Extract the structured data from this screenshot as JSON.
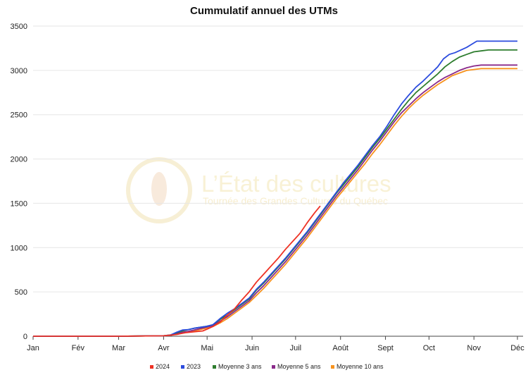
{
  "watermark": {
    "title": "L’État des cultures",
    "subtitle": "Tournée des Grandes Cultures du Québec"
  },
  "chart_data": {
    "type": "line",
    "title": "Cummulatif annuel des UTMs",
    "xlabel": "",
    "ylabel": "",
    "x_tick_labels": [
      "Jan",
      "Fév",
      "Mar",
      "Avr",
      "Mai",
      "Juin",
      "Juil",
      "Août",
      "Sept",
      "Oct",
      "Nov",
      "Déc"
    ],
    "x_tick_days": [
      1,
      32,
      60,
      91,
      121,
      152,
      182,
      213,
      244,
      274,
      305,
      335
    ],
    "xlim": [
      1,
      335
    ],
    "ylim": [
      0,
      3500
    ],
    "y_ticks": [
      0,
      500,
      1000,
      1500,
      2000,
      2500,
      3000,
      3500
    ],
    "grid": "horizontal",
    "legend_position": "bottom",
    "series": [
      {
        "name": "2024",
        "color": "#ee3224",
        "points": [
          [
            1,
            0
          ],
          [
            60,
            0
          ],
          [
            91,
            5
          ],
          [
            100,
            20
          ],
          [
            106,
            40
          ],
          [
            112,
            50
          ],
          [
            118,
            60
          ],
          [
            121,
            80
          ],
          [
            125,
            110
          ],
          [
            130,
            160
          ],
          [
            135,
            240
          ],
          [
            140,
            310
          ],
          [
            145,
            410
          ],
          [
            150,
            500
          ],
          [
            155,
            610
          ],
          [
            160,
            700
          ],
          [
            165,
            790
          ],
          [
            170,
            880
          ],
          [
            175,
            980
          ],
          [
            180,
            1070
          ],
          [
            185,
            1160
          ],
          [
            190,
            1280
          ],
          [
            195,
            1390
          ],
          [
            199,
            1470
          ]
        ]
      },
      {
        "name": "2023",
        "color": "#2b4bde",
        "points": [
          [
            1,
            0
          ],
          [
            60,
            0
          ],
          [
            91,
            5
          ],
          [
            96,
            15
          ],
          [
            100,
            45
          ],
          [
            104,
            70
          ],
          [
            108,
            75
          ],
          [
            112,
            90
          ],
          [
            116,
            100
          ],
          [
            120,
            110
          ],
          [
            125,
            130
          ],
          [
            130,
            200
          ],
          [
            135,
            260
          ],
          [
            140,
            310
          ],
          [
            145,
            370
          ],
          [
            150,
            430
          ],
          [
            155,
            530
          ],
          [
            160,
            610
          ],
          [
            165,
            700
          ],
          [
            170,
            790
          ],
          [
            175,
            880
          ],
          [
            180,
            980
          ],
          [
            185,
            1080
          ],
          [
            190,
            1180
          ],
          [
            195,
            1290
          ],
          [
            200,
            1400
          ],
          [
            205,
            1510
          ],
          [
            210,
            1620
          ],
          [
            215,
            1730
          ],
          [
            220,
            1830
          ],
          [
            225,
            1930
          ],
          [
            230,
            2040
          ],
          [
            235,
            2150
          ],
          [
            240,
            2250
          ],
          [
            245,
            2370
          ],
          [
            250,
            2500
          ],
          [
            255,
            2620
          ],
          [
            260,
            2720
          ],
          [
            265,
            2810
          ],
          [
            270,
            2880
          ],
          [
            275,
            2960
          ],
          [
            280,
            3040
          ],
          [
            284,
            3130
          ],
          [
            288,
            3180
          ],
          [
            292,
            3200
          ],
          [
            296,
            3230
          ],
          [
            300,
            3260
          ],
          [
            303,
            3290
          ],
          [
            307,
            3330
          ],
          [
            320,
            3330
          ],
          [
            335,
            3330
          ]
        ]
      },
      {
        "name": "Moyenne 3 ans",
        "color": "#2e7d2e",
        "points": [
          [
            1,
            0
          ],
          [
            60,
            0
          ],
          [
            91,
            5
          ],
          [
            96,
            15
          ],
          [
            100,
            40
          ],
          [
            104,
            60
          ],
          [
            108,
            75
          ],
          [
            112,
            90
          ],
          [
            116,
            100
          ],
          [
            120,
            110
          ],
          [
            125,
            130
          ],
          [
            130,
            190
          ],
          [
            135,
            240
          ],
          [
            140,
            300
          ],
          [
            145,
            360
          ],
          [
            150,
            420
          ],
          [
            155,
            520
          ],
          [
            160,
            600
          ],
          [
            165,
            690
          ],
          [
            170,
            780
          ],
          [
            175,
            870
          ],
          [
            180,
            970
          ],
          [
            185,
            1070
          ],
          [
            190,
            1170
          ],
          [
            195,
            1280
          ],
          [
            200,
            1390
          ],
          [
            205,
            1500
          ],
          [
            210,
            1610
          ],
          [
            215,
            1710
          ],
          [
            220,
            1810
          ],
          [
            225,
            1910
          ],
          [
            230,
            2020
          ],
          [
            235,
            2130
          ],
          [
            240,
            2230
          ],
          [
            245,
            2340
          ],
          [
            250,
            2450
          ],
          [
            255,
            2560
          ],
          [
            260,
            2660
          ],
          [
            265,
            2750
          ],
          [
            270,
            2820
          ],
          [
            275,
            2890
          ],
          [
            280,
            2960
          ],
          [
            285,
            3040
          ],
          [
            290,
            3100
          ],
          [
            295,
            3150
          ],
          [
            300,
            3180
          ],
          [
            305,
            3210
          ],
          [
            310,
            3220
          ],
          [
            315,
            3230
          ],
          [
            335,
            3230
          ]
        ]
      },
      {
        "name": "Moyenne 5 ans",
        "color": "#8a2a8a",
        "points": [
          [
            1,
            0
          ],
          [
            60,
            0
          ],
          [
            91,
            5
          ],
          [
            96,
            10
          ],
          [
            100,
            30
          ],
          [
            104,
            45
          ],
          [
            108,
            55
          ],
          [
            112,
            70
          ],
          [
            116,
            85
          ],
          [
            120,
            100
          ],
          [
            125,
            120
          ],
          [
            130,
            170
          ],
          [
            135,
            220
          ],
          [
            140,
            280
          ],
          [
            145,
            340
          ],
          [
            150,
            400
          ],
          [
            155,
            490
          ],
          [
            160,
            570
          ],
          [
            165,
            660
          ],
          [
            170,
            750
          ],
          [
            175,
            840
          ],
          [
            180,
            940
          ],
          [
            185,
            1040
          ],
          [
            190,
            1140
          ],
          [
            195,
            1250
          ],
          [
            200,
            1360
          ],
          [
            205,
            1470
          ],
          [
            210,
            1580
          ],
          [
            215,
            1680
          ],
          [
            220,
            1780
          ],
          [
            225,
            1880
          ],
          [
            230,
            1990
          ],
          [
            235,
            2100
          ],
          [
            240,
            2200
          ],
          [
            245,
            2310
          ],
          [
            250,
            2420
          ],
          [
            255,
            2520
          ],
          [
            260,
            2600
          ],
          [
            265,
            2680
          ],
          [
            270,
            2750
          ],
          [
            275,
            2810
          ],
          [
            280,
            2870
          ],
          [
            285,
            2920
          ],
          [
            290,
            2960
          ],
          [
            295,
            3000
          ],
          [
            300,
            3030
          ],
          [
            305,
            3050
          ],
          [
            310,
            3060
          ],
          [
            335,
            3060
          ]
        ]
      },
      {
        "name": "Moyenne 10 ans",
        "color": "#f7931e",
        "points": [
          [
            1,
            0
          ],
          [
            60,
            0
          ],
          [
            91,
            5
          ],
          [
            96,
            10
          ],
          [
            100,
            25
          ],
          [
            104,
            40
          ],
          [
            108,
            50
          ],
          [
            112,
            60
          ],
          [
            116,
            75
          ],
          [
            120,
            90
          ],
          [
            125,
            110
          ],
          [
            130,
            150
          ],
          [
            135,
            200
          ],
          [
            140,
            260
          ],
          [
            145,
            320
          ],
          [
            150,
            380
          ],
          [
            155,
            460
          ],
          [
            160,
            540
          ],
          [
            165,
            630
          ],
          [
            170,
            720
          ],
          [
            175,
            810
          ],
          [
            180,
            910
          ],
          [
            185,
            1010
          ],
          [
            190,
            1110
          ],
          [
            195,
            1220
          ],
          [
            200,
            1330
          ],
          [
            205,
            1440
          ],
          [
            210,
            1550
          ],
          [
            215,
            1650
          ],
          [
            220,
            1750
          ],
          [
            225,
            1850
          ],
          [
            230,
            1950
          ],
          [
            235,
            2060
          ],
          [
            240,
            2160
          ],
          [
            245,
            2270
          ],
          [
            250,
            2380
          ],
          [
            255,
            2480
          ],
          [
            260,
            2570
          ],
          [
            265,
            2650
          ],
          [
            270,
            2720
          ],
          [
            275,
            2780
          ],
          [
            280,
            2840
          ],
          [
            285,
            2890
          ],
          [
            290,
            2940
          ],
          [
            295,
            2970
          ],
          [
            300,
            3000
          ],
          [
            305,
            3010
          ],
          [
            310,
            3020
          ],
          [
            335,
            3020
          ]
        ]
      }
    ]
  }
}
